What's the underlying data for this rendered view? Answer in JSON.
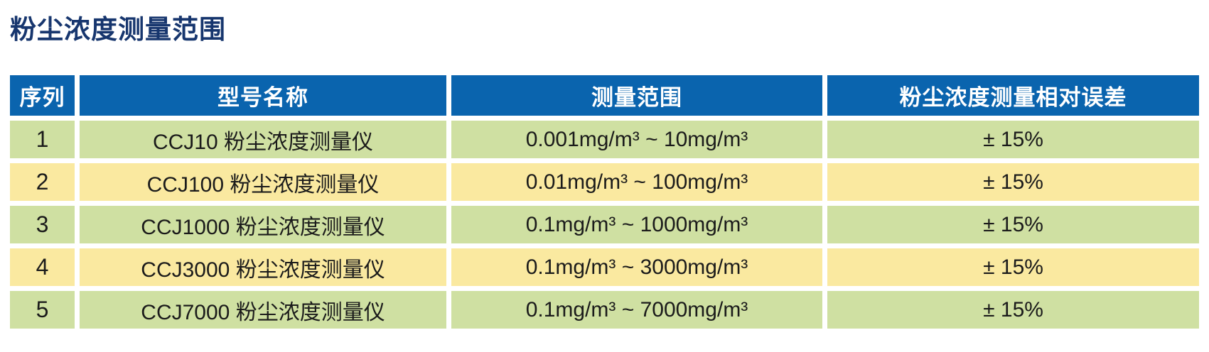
{
  "title": "粉尘浓度测量范围",
  "colors": {
    "header_bg": "#0a64ae",
    "row_green": "#cfe0a2",
    "row_yellow": "#fae9a0",
    "title_color": "#17366e",
    "header_text": "#ffffff",
    "cell_text": "#1b1b1b"
  },
  "table": {
    "headers": [
      "序列",
      "型号名称",
      "测量范围",
      "粉尘浓度测量相对误差"
    ],
    "rows": [
      {
        "serial": "1",
        "model": "CCJ10 粉尘浓度测量仪",
        "range": "0.001mg/m³ ~ 10mg/m³",
        "error": "± 15%"
      },
      {
        "serial": "2",
        "model": "CCJ100 粉尘浓度测量仪",
        "range": "0.01mg/m³ ~ 100mg/m³",
        "error": "± 15%"
      },
      {
        "serial": "3",
        "model": "CCJ1000 粉尘浓度测量仪",
        "range": "0.1mg/m³ ~ 1000mg/m³",
        "error": "± 15%"
      },
      {
        "serial": "4",
        "model": "CCJ3000 粉尘浓度测量仪",
        "range": "0.1mg/m³ ~ 3000mg/m³",
        "error": "± 15%"
      },
      {
        "serial": "5",
        "model": "CCJ7000 粉尘浓度测量仪",
        "range": "0.1mg/m³ ~ 7000mg/m³",
        "error": "± 15%"
      }
    ]
  }
}
